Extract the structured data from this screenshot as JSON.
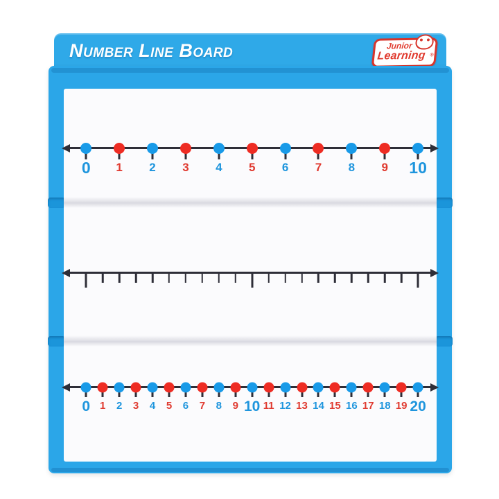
{
  "colors": {
    "header_blue": "#2fa9e8",
    "frame_blue": "#2ba6e8",
    "hinge_blue": "#1b95da",
    "logo_red": "#e03a2e",
    "line_dark": "#2e2e38",
    "dot_blue": "#189ae8",
    "dot_red": "#ee2c23",
    "label_blue": "#1e95dd",
    "label_red": "#e03a30",
    "panel_white": "#fbfbfd"
  },
  "board": {
    "title": "Number Line Board",
    "logo": {
      "line1": "Junior",
      "line2": "Learning",
      "registered": "®"
    }
  },
  "number_lines": {
    "top": {
      "style": "dots",
      "range_min": 0,
      "range_max": 10,
      "items": [
        {
          "value": "0",
          "dot": "blue",
          "label_color": "blue",
          "emphasis": true
        },
        {
          "value": "1",
          "dot": "red",
          "label_color": "red",
          "emphasis": false
        },
        {
          "value": "2",
          "dot": "blue",
          "label_color": "blue",
          "emphasis": false
        },
        {
          "value": "3",
          "dot": "red",
          "label_color": "red",
          "emphasis": false
        },
        {
          "value": "4",
          "dot": "blue",
          "label_color": "blue",
          "emphasis": false
        },
        {
          "value": "5",
          "dot": "red",
          "label_color": "red",
          "emphasis": false
        },
        {
          "value": "6",
          "dot": "blue",
          "label_color": "blue",
          "emphasis": false
        },
        {
          "value": "7",
          "dot": "red",
          "label_color": "red",
          "emphasis": false
        },
        {
          "value": "8",
          "dot": "blue",
          "label_color": "blue",
          "emphasis": false
        },
        {
          "value": "9",
          "dot": "red",
          "label_color": "red",
          "emphasis": false
        },
        {
          "value": "10",
          "dot": "blue",
          "label_color": "blue",
          "emphasis": true
        }
      ]
    },
    "middle": {
      "style": "blank",
      "tick_count": 21,
      "major_every": 10
    },
    "bottom": {
      "style": "dots",
      "range_min": 0,
      "range_max": 20,
      "items": [
        {
          "value": "0",
          "dot": "blue",
          "label_color": "blue",
          "emphasis": true
        },
        {
          "value": "1",
          "dot": "red",
          "label_color": "red",
          "emphasis": false
        },
        {
          "value": "2",
          "dot": "blue",
          "label_color": "blue",
          "emphasis": false
        },
        {
          "value": "3",
          "dot": "red",
          "label_color": "red",
          "emphasis": false
        },
        {
          "value": "4",
          "dot": "blue",
          "label_color": "blue",
          "emphasis": false
        },
        {
          "value": "5",
          "dot": "red",
          "label_color": "red",
          "emphasis": false
        },
        {
          "value": "6",
          "dot": "blue",
          "label_color": "blue",
          "emphasis": false
        },
        {
          "value": "7",
          "dot": "red",
          "label_color": "red",
          "emphasis": false
        },
        {
          "value": "8",
          "dot": "blue",
          "label_color": "blue",
          "emphasis": false
        },
        {
          "value": "9",
          "dot": "red",
          "label_color": "red",
          "emphasis": false
        },
        {
          "value": "10",
          "dot": "blue",
          "label_color": "blue",
          "emphasis": true
        },
        {
          "value": "11",
          "dot": "red",
          "label_color": "red",
          "emphasis": false
        },
        {
          "value": "12",
          "dot": "blue",
          "label_color": "blue",
          "emphasis": false
        },
        {
          "value": "13",
          "dot": "red",
          "label_color": "red",
          "emphasis": false
        },
        {
          "value": "14",
          "dot": "blue",
          "label_color": "blue",
          "emphasis": false
        },
        {
          "value": "15",
          "dot": "red",
          "label_color": "red",
          "emphasis": false
        },
        {
          "value": "16",
          "dot": "blue",
          "label_color": "blue",
          "emphasis": false
        },
        {
          "value": "17",
          "dot": "red",
          "label_color": "red",
          "emphasis": false
        },
        {
          "value": "18",
          "dot": "blue",
          "label_color": "blue",
          "emphasis": false
        },
        {
          "value": "19",
          "dot": "red",
          "label_color": "red",
          "emphasis": false
        },
        {
          "value": "20",
          "dot": "blue",
          "label_color": "blue",
          "emphasis": true
        }
      ]
    }
  }
}
